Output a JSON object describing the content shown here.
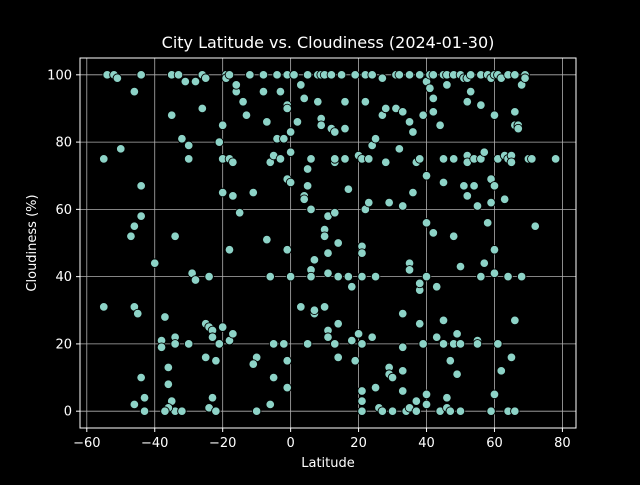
{
  "chart_data": {
    "type": "scatter",
    "title": "City Latitude vs. Cloudiness (2024-01-30)",
    "xlabel": "Latitude",
    "ylabel": "Cloudiness (%)",
    "xlim": [
      -62,
      84
    ],
    "ylim": [
      -5,
      105
    ],
    "xticks": [
      -60,
      -40,
      -20,
      0,
      20,
      40,
      60,
      80
    ],
    "yticks": [
      0,
      20,
      40,
      60,
      80,
      100
    ],
    "grid": true,
    "background": "#000000",
    "text_color": "#ffffff",
    "grid_color": "#b0b0b0",
    "marker_color": "#8dd3c7",
    "marker_edge_color": "#000000",
    "points": [
      [
        -54,
        100
      ],
      [
        -52,
        100
      ],
      [
        -51,
        99
      ],
      [
        -44,
        100
      ],
      [
        -46,
        95
      ],
      [
        -55,
        75
      ],
      [
        -50,
        78
      ],
      [
        -47,
        52
      ],
      [
        -46,
        55
      ],
      [
        -44,
        58
      ],
      [
        -44,
        67
      ],
      [
        -55,
        31
      ],
      [
        -46,
        31
      ],
      [
        -45,
        29
      ],
      [
        -46,
        2
      ],
      [
        -44,
        10
      ],
      [
        -43,
        4
      ],
      [
        -43,
        0
      ],
      [
        -40,
        44
      ],
      [
        -38,
        21
      ],
      [
        -38,
        19
      ],
      [
        -37,
        28
      ],
      [
        -36,
        13
      ],
      [
        -36,
        8
      ],
      [
        -35,
        88
      ],
      [
        -35,
        100
      ],
      [
        -34,
        52
      ],
      [
        -34,
        22
      ],
      [
        -34,
        20
      ],
      [
        -35,
        3
      ],
      [
        -34,
        0
      ],
      [
        -32,
        0
      ],
      [
        -36,
        1
      ],
      [
        -37,
        0
      ],
      [
        -30,
        20
      ],
      [
        -33,
        100
      ],
      [
        -32,
        81
      ],
      [
        -31,
        98
      ],
      [
        -30,
        79
      ],
      [
        -30,
        75
      ],
      [
        -29,
        41
      ],
      [
        -28,
        39
      ],
      [
        -28,
        98
      ],
      [
        -26,
        100
      ],
      [
        -26,
        90
      ],
      [
        -25,
        99
      ],
      [
        -24,
        40
      ],
      [
        -25,
        26
      ],
      [
        -24,
        25
      ],
      [
        -23,
        24
      ],
      [
        -23,
        22
      ],
      [
        -25,
        16
      ],
      [
        -24,
        1
      ],
      [
        -22,
        0
      ],
      [
        -23,
        4
      ],
      [
        -22,
        15
      ],
      [
        -21,
        20
      ],
      [
        -20,
        25
      ],
      [
        -21,
        80
      ],
      [
        -20,
        75
      ],
      [
        -20,
        85
      ],
      [
        -20,
        65
      ],
      [
        -19,
        100
      ],
      [
        -19,
        99
      ],
      [
        -18,
        100
      ],
      [
        -18,
        75
      ],
      [
        -17,
        74
      ],
      [
        -17,
        64
      ],
      [
        -18,
        48
      ],
      [
        -18,
        21
      ],
      [
        -17,
        23
      ],
      [
        -16,
        95
      ],
      [
        -16,
        97
      ],
      [
        -15,
        59
      ],
      [
        -14,
        92
      ],
      [
        -13,
        88
      ],
      [
        -12,
        100
      ],
      [
        -11,
        65
      ],
      [
        -10,
        16
      ],
      [
        -11,
        14
      ],
      [
        -10,
        0
      ],
      [
        -8,
        100
      ],
      [
        -8,
        95
      ],
      [
        -7,
        86
      ],
      [
        -7,
        51
      ],
      [
        -6,
        74
      ],
      [
        -5,
        76
      ],
      [
        -6,
        40
      ],
      [
        -5,
        20
      ],
      [
        -6,
        2
      ],
      [
        -5,
        10
      ],
      [
        -4,
        100
      ],
      [
        -4,
        81
      ],
      [
        -3,
        95
      ],
      [
        -3,
        75
      ],
      [
        -2,
        81
      ],
      [
        -1,
        100
      ],
      [
        -1,
        91
      ],
      [
        -1,
        90
      ],
      [
        -1,
        69
      ],
      [
        -1,
        48
      ],
      [
        -2,
        20
      ],
      [
        -1,
        15
      ],
      [
        -1,
        7
      ],
      [
        0,
        77
      ],
      [
        0,
        83
      ],
      [
        0,
        68
      ],
      [
        0,
        40
      ],
      [
        1,
        100
      ],
      [
        2,
        86
      ],
      [
        3,
        97
      ],
      [
        3,
        31
      ],
      [
        4,
        93
      ],
      [
        4,
        64
      ],
      [
        4,
        63
      ],
      [
        5,
        100
      ],
      [
        5,
        72
      ],
      [
        5,
        67
      ],
      [
        6,
        75
      ],
      [
        6,
        60
      ],
      [
        6,
        42
      ],
      [
        6,
        40
      ],
      [
        5,
        20
      ],
      [
        7,
        45
      ],
      [
        7,
        29
      ],
      [
        7,
        30
      ],
      [
        8,
        100
      ],
      [
        8,
        92
      ],
      [
        9,
        100
      ],
      [
        9,
        87
      ],
      [
        9,
        85
      ],
      [
        10,
        100
      ],
      [
        10,
        54
      ],
      [
        10,
        52
      ],
      [
        11,
        58
      ],
      [
        11,
        47
      ],
      [
        11,
        41
      ],
      [
        10,
        31
      ],
      [
        11,
        24
      ],
      [
        11,
        22
      ],
      [
        12,
        100
      ],
      [
        12,
        84
      ],
      [
        13,
        83
      ],
      [
        13,
        74
      ],
      [
        13,
        75
      ],
      [
        13,
        59
      ],
      [
        14,
        50
      ],
      [
        14,
        40
      ],
      [
        14,
        26
      ],
      [
        13,
        20
      ],
      [
        14,
        16
      ],
      [
        15,
        100
      ],
      [
        16,
        84
      ],
      [
        16,
        92
      ],
      [
        16,
        75
      ],
      [
        17,
        66
      ],
      [
        17,
        40
      ],
      [
        18,
        37
      ],
      [
        18,
        21
      ],
      [
        19,
        15
      ],
      [
        19,
        100
      ],
      [
        20,
        76
      ],
      [
        21,
        75
      ],
      [
        21,
        49
      ],
      [
        21,
        47
      ],
      [
        21,
        40
      ],
      [
        20,
        23
      ],
      [
        21,
        20
      ],
      [
        21,
        6
      ],
      [
        21,
        3
      ],
      [
        21,
        0
      ],
      [
        22,
        100
      ],
      [
        22,
        92
      ],
      [
        22,
        60
      ],
      [
        23,
        75
      ],
      [
        23,
        62
      ],
      [
        24,
        100
      ],
      [
        24,
        79
      ],
      [
        25,
        81
      ],
      [
        25,
        40
      ],
      [
        24,
        22
      ],
      [
        25,
        7
      ],
      [
        26,
        1
      ],
      [
        27,
        0
      ],
      [
        27,
        99
      ],
      [
        27,
        88
      ],
      [
        28,
        90
      ],
      [
        28,
        74
      ],
      [
        29,
        62
      ],
      [
        29,
        13
      ],
      [
        29,
        11
      ],
      [
        30,
        10
      ],
      [
        30,
        0
      ],
      [
        31,
        100
      ],
      [
        31,
        90
      ],
      [
        32,
        100
      ],
      [
        32,
        78
      ],
      [
        33,
        89
      ],
      [
        33,
        61
      ],
      [
        33,
        29
      ],
      [
        33,
        19
      ],
      [
        33,
        12
      ],
      [
        33,
        6
      ],
      [
        34,
        0
      ],
      [
        35,
        100
      ],
      [
        35,
        86
      ],
      [
        35,
        44
      ],
      [
        35,
        42
      ],
      [
        35,
        1
      ],
      [
        36,
        83
      ],
      [
        36,
        65
      ],
      [
        37,
        74
      ],
      [
        37,
        3
      ],
      [
        37,
        0
      ],
      [
        38,
        100
      ],
      [
        38,
        75
      ],
      [
        38,
        36
      ],
      [
        38,
        38
      ],
      [
        38,
        26
      ],
      [
        39,
        88
      ],
      [
        39,
        20
      ],
      [
        40,
        98
      ],
      [
        40,
        70
      ],
      [
        40,
        56
      ],
      [
        40,
        40
      ],
      [
        40,
        5
      ],
      [
        40,
        2
      ],
      [
        41,
        100
      ],
      [
        41,
        96
      ],
      [
        42,
        100
      ],
      [
        42,
        93
      ],
      [
        42,
        89
      ],
      [
        42,
        53
      ],
      [
        43,
        37
      ],
      [
        43,
        22
      ],
      [
        44,
        0
      ],
      [
        44,
        85
      ],
      [
        45,
        100
      ],
      [
        45,
        75
      ],
      [
        45,
        68
      ],
      [
        45,
        27
      ],
      [
        45,
        20
      ],
      [
        46,
        100
      ],
      [
        46,
        97
      ],
      [
        46,
        4
      ],
      [
        46,
        1
      ],
      [
        47,
        15
      ],
      [
        47,
        0
      ],
      [
        48,
        100
      ],
      [
        48,
        75
      ],
      [
        48,
        52
      ],
      [
        48,
        20
      ],
      [
        49,
        11
      ],
      [
        49,
        23
      ],
      [
        50,
        100
      ],
      [
        50,
        43
      ],
      [
        50,
        20
      ],
      [
        50,
        0
      ],
      [
        51,
        99
      ],
      [
        51,
        67
      ],
      [
        52,
        99
      ],
      [
        52,
        92
      ],
      [
        52,
        76
      ],
      [
        52,
        74
      ],
      [
        52,
        64
      ],
      [
        53,
        100
      ],
      [
        53,
        95
      ],
      [
        54,
        75
      ],
      [
        54,
        67
      ],
      [
        55,
        61
      ],
      [
        55,
        21
      ],
      [
        55,
        20
      ],
      [
        56,
        100
      ],
      [
        56,
        91
      ],
      [
        56,
        75
      ],
      [
        56,
        40
      ],
      [
        57,
        77
      ],
      [
        57,
        44
      ],
      [
        58,
        100
      ],
      [
        58,
        56
      ],
      [
        59,
        99
      ],
      [
        59,
        69
      ],
      [
        59,
        62
      ],
      [
        59,
        0
      ],
      [
        60,
        100
      ],
      [
        60,
        88
      ],
      [
        60,
        67
      ],
      [
        60,
        48
      ],
      [
        60,
        41
      ],
      [
        60,
        5
      ],
      [
        61,
        100
      ],
      [
        61,
        75
      ],
      [
        61,
        20
      ],
      [
        62,
        99
      ],
      [
        62,
        12
      ],
      [
        63,
        76
      ],
      [
        63,
        63
      ],
      [
        64,
        100
      ],
      [
        64,
        75
      ],
      [
        64,
        40
      ],
      [
        64,
        0
      ],
      [
        65,
        76
      ],
      [
        65,
        74
      ],
      [
        65,
        16
      ],
      [
        66,
        100
      ],
      [
        66,
        89
      ],
      [
        66,
        85
      ],
      [
        66,
        27
      ],
      [
        66,
        0
      ],
      [
        67,
        85
      ],
      [
        67,
        84
      ],
      [
        68,
        97
      ],
      [
        68,
        40
      ],
      [
        69,
        100
      ],
      [
        69,
        99
      ],
      [
        70,
        75
      ],
      [
        71,
        75
      ],
      [
        72,
        55
      ],
      [
        78,
        75
      ]
    ]
  }
}
